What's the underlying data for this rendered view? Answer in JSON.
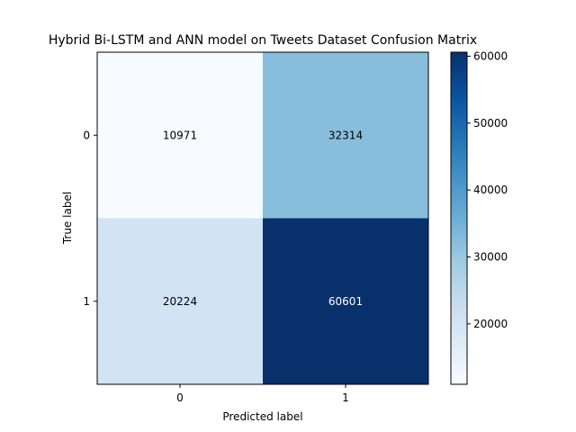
{
  "chart_data": {
    "type": "heatmap",
    "title": "Hybrid Bi-LSTM and ANN model on Tweets Dataset Confusion Matrix",
    "xlabel": "Predicted label",
    "ylabel": "True label",
    "x_categories": [
      "0",
      "1"
    ],
    "y_categories": [
      "0",
      "1"
    ],
    "matrix": [
      [
        10971,
        32314
      ],
      [
        20224,
        60601
      ]
    ],
    "matrix_labels": [
      [
        "10971",
        "32314"
      ],
      [
        "20224",
        "60601"
      ]
    ],
    "colormap": "Blues",
    "colorbar": {
      "range": [
        10971,
        60601
      ],
      "ticks": [
        20000,
        30000,
        40000,
        50000,
        60000
      ],
      "tick_labels": [
        "20000",
        "30000",
        "40000",
        "50000",
        "60000"
      ]
    },
    "grid": false
  }
}
